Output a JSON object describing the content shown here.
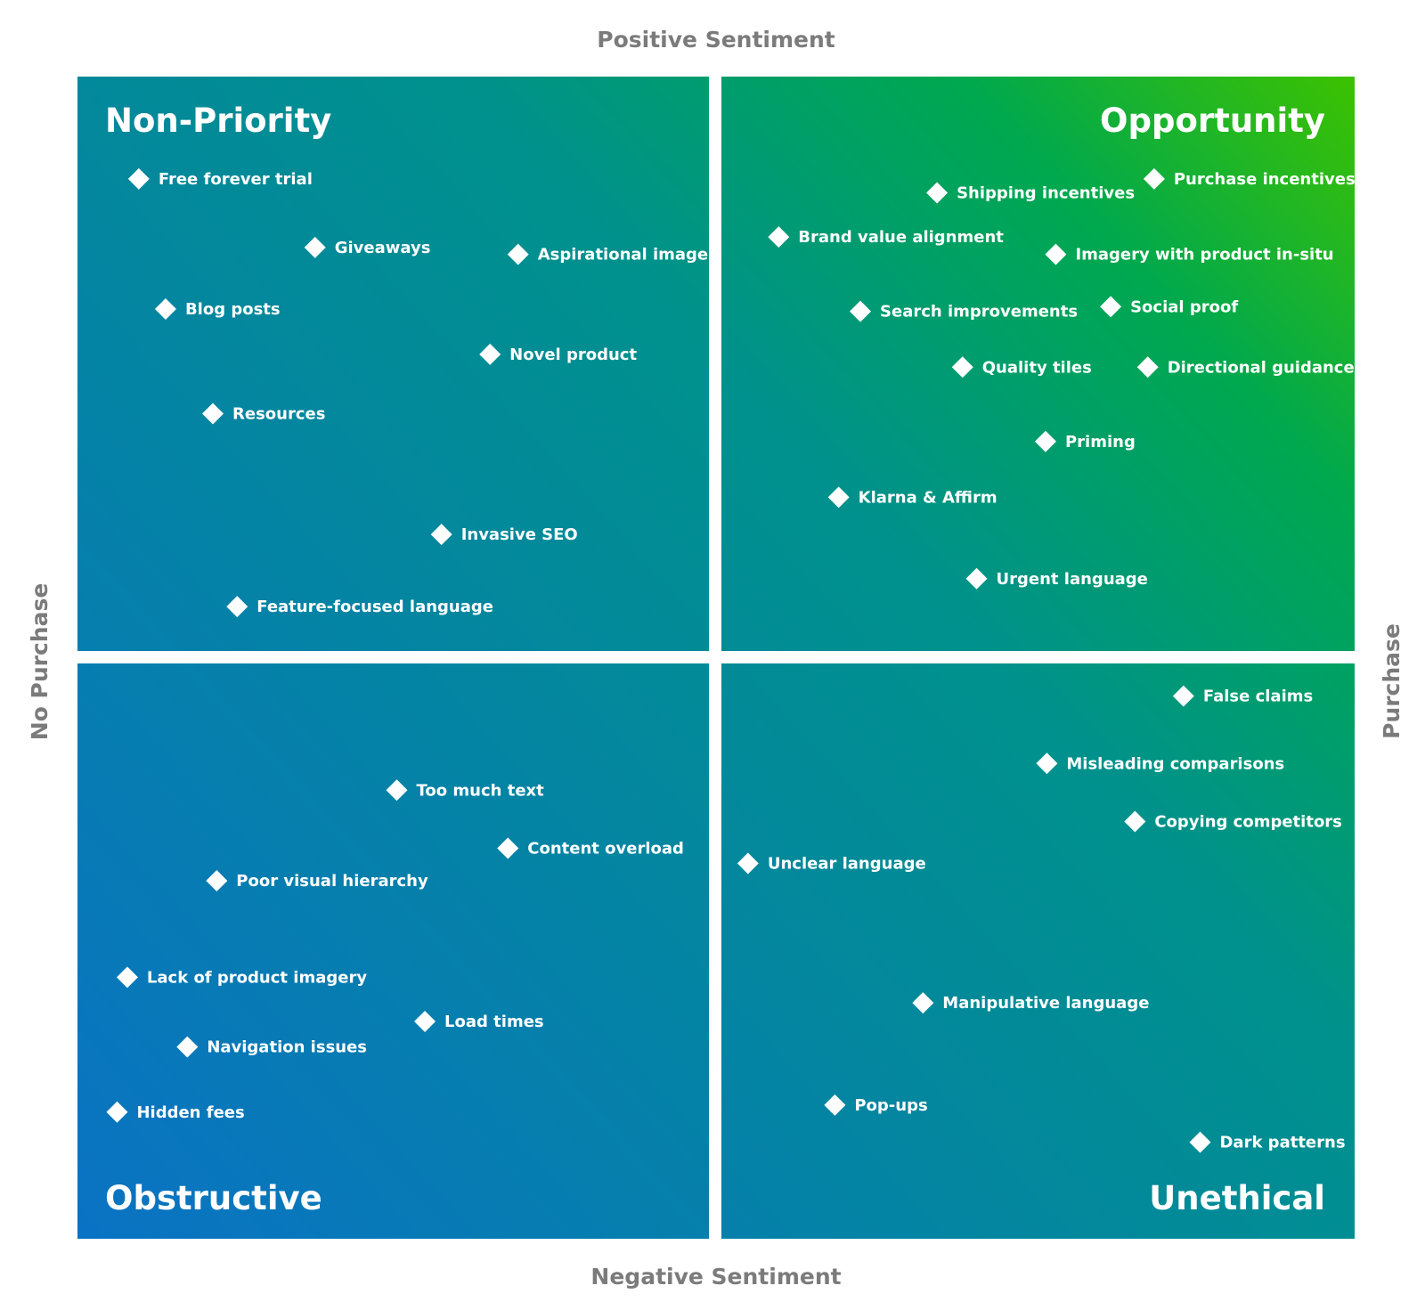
{
  "chart_data": {
    "type": "scatter",
    "axis_labels": {
      "top": "Positive Sentiment",
      "bottom": "Negative Sentiment",
      "left": "No Purchase",
      "right": "Purchase"
    },
    "xlim": [
      0,
      100
    ],
    "ylim": [
      0,
      100
    ],
    "grid": false,
    "legend": "none",
    "quadrants": [
      {
        "id": "non-priority",
        "title": "Non-Priority",
        "position": "top-left"
      },
      {
        "id": "opportunity",
        "title": "Opportunity",
        "position": "top-right"
      },
      {
        "id": "obstructive",
        "title": "Obstructive",
        "position": "bottom-left"
      },
      {
        "id": "unethical",
        "title": "Unethical",
        "position": "bottom-right"
      }
    ],
    "points": [
      {
        "label": "Free forever trial",
        "x": 4.8,
        "y": 91.2
      },
      {
        "label": "Giveaways",
        "x": 18.6,
        "y": 85.3
      },
      {
        "label": "Aspirational images",
        "x": 34.5,
        "y": 84.7
      },
      {
        "label": "Blog posts",
        "x": 6.9,
        "y": 80.0
      },
      {
        "label": "Novel product",
        "x": 32.3,
        "y": 76.1
      },
      {
        "label": "Resources",
        "x": 10.6,
        "y": 71.0
      },
      {
        "label": "Invasive SEO",
        "x": 28.5,
        "y": 60.6
      },
      {
        "label": "Feature-focused language",
        "x": 12.5,
        "y": 54.4
      },
      {
        "label": "Shipping incentives",
        "x": 67.3,
        "y": 90.0
      },
      {
        "label": "Purchase incentives",
        "x": 84.3,
        "y": 91.2
      },
      {
        "label": "Brand value alignment",
        "x": 54.9,
        "y": 86.2
      },
      {
        "label": "Imagery with product in-situ",
        "x": 76.6,
        "y": 84.7
      },
      {
        "label": "Search improvements",
        "x": 61.3,
        "y": 79.8
      },
      {
        "label": "Social proof",
        "x": 80.9,
        "y": 80.2
      },
      {
        "label": "Quality tiles",
        "x": 69.3,
        "y": 75.0
      },
      {
        "label": "Directional guidance",
        "x": 83.8,
        "y": 75.0
      },
      {
        "label": "Priming",
        "x": 75.8,
        "y": 68.6
      },
      {
        "label": "Klarna & Affirm",
        "x": 59.6,
        "y": 63.8
      },
      {
        "label": "Urgent language",
        "x": 70.4,
        "y": 56.8
      },
      {
        "label": "Too much text",
        "x": 25.0,
        "y": 38.6
      },
      {
        "label": "Content overload",
        "x": 33.7,
        "y": 33.6
      },
      {
        "label": "Poor visual hierarchy",
        "x": 10.9,
        "y": 30.8
      },
      {
        "label": "Lack of product imagery",
        "x": 3.9,
        "y": 22.5
      },
      {
        "label": "Load times",
        "x": 27.2,
        "y": 18.7
      },
      {
        "label": "Navigation issues",
        "x": 8.6,
        "y": 16.5
      },
      {
        "label": "Hidden fees",
        "x": 3.1,
        "y": 10.9
      },
      {
        "label": "False claims",
        "x": 86.6,
        "y": 46.7
      },
      {
        "label": "Misleading comparisons",
        "x": 75.9,
        "y": 40.9
      },
      {
        "label": "Copying competitors",
        "x": 82.8,
        "y": 35.9
      },
      {
        "label": "Unclear language",
        "x": 52.5,
        "y": 32.3
      },
      {
        "label": "Manipulative language",
        "x": 66.2,
        "y": 20.3
      },
      {
        "label": "Pop-ups",
        "x": 59.3,
        "y": 11.5
      },
      {
        "label": "Dark patterns",
        "x": 87.9,
        "y": 8.3
      }
    ],
    "colors": {
      "blue": "#0a72c4",
      "teal": "#00918c",
      "green": "#3dc200",
      "marker": "#ffffff",
      "axis_text": "#7b7b7b"
    }
  }
}
